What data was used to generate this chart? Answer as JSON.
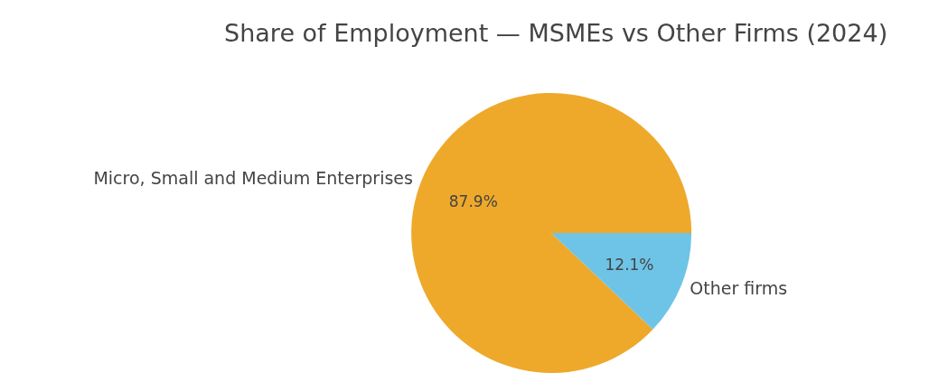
{
  "chart_data": {
    "type": "pie",
    "title": "Share of Employment — MSMEs vs Other Firms (2024)",
    "categories": [
      "Micro, Small and Medium Enterprises",
      "Other firms"
    ],
    "values": [
      87.9,
      12.1
    ],
    "colors": [
      "#eea92b",
      "#6ec4e6"
    ],
    "value_labels": [
      "87.9%",
      "12.1%"
    ],
    "legend": false
  }
}
